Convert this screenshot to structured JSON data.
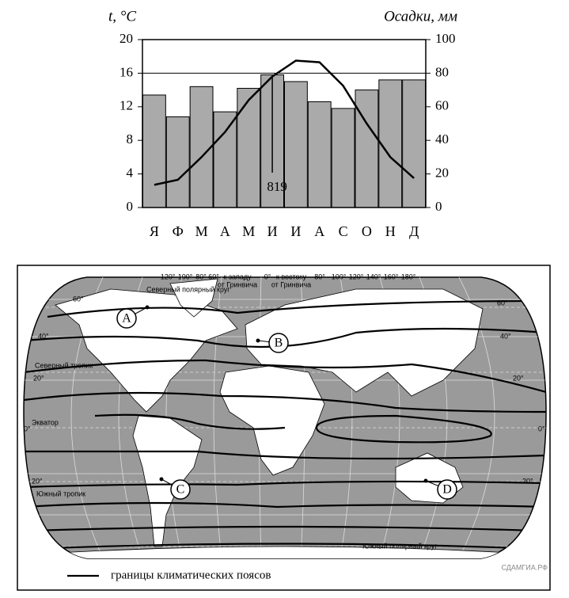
{
  "chart_data": {
    "type": "bar",
    "ylabel": "t, °C",
    "y2label": "Осадки, мм",
    "categories": [
      "Я",
      "Ф",
      "М",
      "А",
      "М",
      "И",
      "И",
      "А",
      "С",
      "О",
      "Н",
      "Д"
    ],
    "series": [
      {
        "type": "bar",
        "axis": "y2",
        "color": "#aaaaaa",
        "values": [
          67,
          54,
          72,
          57,
          71,
          79,
          75,
          63,
          59,
          70,
          76,
          76
        ]
      },
      {
        "type": "line",
        "color": "#000000",
        "values": [
          2.7,
          3.3,
          6,
          9,
          12.8,
          15.6,
          17.5,
          17.3,
          14.5,
          10,
          6,
          3.5
        ]
      }
    ],
    "annotation": "819",
    "ylim": [
      0,
      20
    ],
    "yticks": [
      0,
      4,
      8,
      12,
      16,
      20
    ],
    "y2lim": [
      0,
      100
    ],
    "y2ticks": [
      0,
      20,
      40,
      60,
      80,
      100
    ]
  },
  "map": {
    "scale_labels": [
      "120°",
      "100°",
      "80°",
      "60°",
      "к западу",
      "от Гринвича",
      "0°",
      "к востоку",
      "от Гринвича",
      "80°",
      "100°",
      "120°",
      "140°",
      "160°",
      "180°"
    ],
    "circles": [
      "Северный полярный круг",
      "Северный тропик",
      "Экватор",
      "Южный тропик",
      "Южный полярный круг"
    ],
    "latitudes": [
      "60°",
      "40°",
      "20°",
      "0°",
      "20°",
      "60°",
      "40°",
      "20°",
      "0°",
      "20°"
    ],
    "points": [
      "A",
      "B",
      "C",
      "D"
    ],
    "legend": "границы климатических поясов",
    "watermark": "СДАМГИА.РФ"
  }
}
